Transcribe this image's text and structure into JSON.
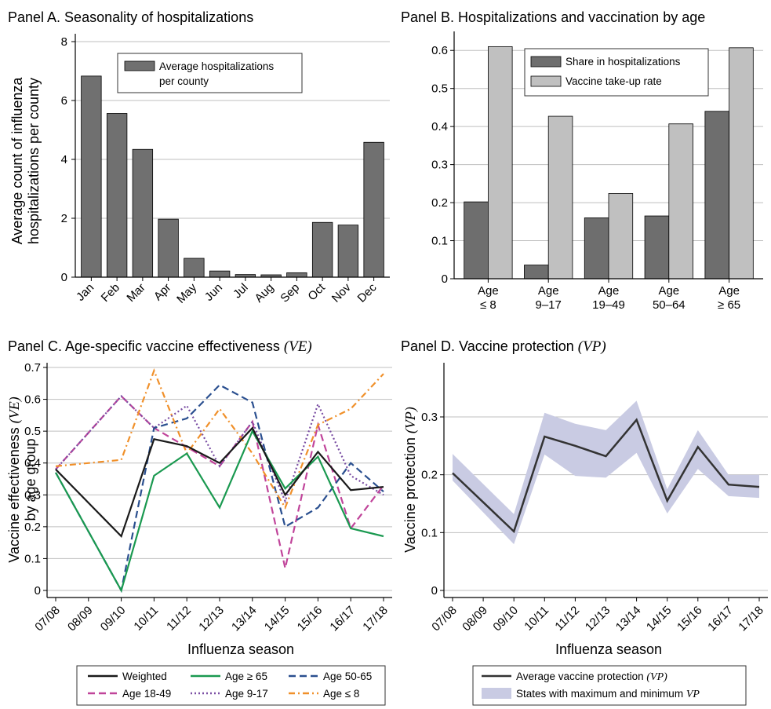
{
  "chart_data": [
    {
      "panel": "A",
      "type": "bar",
      "title": "Panel A. Seasonality of hospitalizations",
      "ylabel": [
        "Average count of influenza",
        "hospitalizations per county"
      ],
      "xlabel": "",
      "ylim": [
        0,
        8
      ],
      "yticks": [
        "0",
        "2",
        "4",
        "6",
        "8"
      ],
      "categories": [
        "Jan",
        "Feb",
        "Mar",
        "Apr",
        "May",
        "Jun",
        "Jul",
        "Aug",
        "Sep",
        "Oct",
        "Nov",
        "Dec"
      ],
      "series": [
        {
          "name": "Average hospitalizations per county",
          "legend_lines": [
            "Average hospitalizations",
            "per county"
          ],
          "color": "#707070",
          "values": [
            6.83,
            5.56,
            4.34,
            1.97,
            0.64,
            0.21,
            0.09,
            0.08,
            0.15,
            1.86,
            1.77,
            4.58
          ]
        }
      ],
      "grid": true,
      "legend": "top-right"
    },
    {
      "panel": "B",
      "type": "bar",
      "title": "Panel B. Hospitalizations and vaccination by age",
      "xlabel": "",
      "ylabel": "",
      "ylim": [
        0,
        0.65
      ],
      "yticks": [
        "0",
        "0.1",
        "0.2",
        "0.3",
        "0.4",
        "0.5",
        "0.6"
      ],
      "categories": [
        {
          "line1": "Age",
          "line2": "≤ 8"
        },
        {
          "line1": "Age",
          "line2": "9–17"
        },
        {
          "line1": "Age",
          "line2": "19–49"
        },
        {
          "line1": "Age",
          "line2": "50–64"
        },
        {
          "line1": "Age",
          "line2": "≥ 65"
        }
      ],
      "series": [
        {
          "name": "Share in hospitalizations",
          "color": "#6e6e6e",
          "values": [
            0.202,
            0.036,
            0.16,
            0.165,
            0.44
          ]
        },
        {
          "name": "Vaccine take-up rate",
          "color": "#c0c0c0",
          "values": [
            0.61,
            0.427,
            0.224,
            0.407,
            0.607
          ]
        }
      ],
      "grid": true,
      "legend": "top-left"
    },
    {
      "panel": "C",
      "type": "line",
      "title": "Panel C. Age-specific vaccine effectiveness ",
      "title_var": "(VE)",
      "xlabel": "Influenza season",
      "ylabel_line1": "Vaccine effectiveness ",
      "ylabel_var": "(VE)",
      "ylabel_line2": "by age group",
      "ylim": [
        0,
        0.7
      ],
      "yticks": [
        "0",
        "0.1",
        "0.2",
        "0.3",
        "0.4",
        "0.5",
        "0.6",
        "0.7"
      ],
      "x": [
        "07/08",
        "08/09",
        "09/10",
        "10/11",
        "11/12",
        "12/13",
        "13/14",
        "14/15",
        "15/16",
        "16/17",
        "17/18"
      ],
      "series": [
        {
          "name": "Weighted",
          "color": "#1a1a1a",
          "dash": "",
          "values": [
            0.38,
            null,
            0.17,
            0.475,
            0.453,
            0.4,
            0.51,
            0.3,
            0.435,
            0.315,
            0.325
          ]
        },
        {
          "name": "Age ≥ 65",
          "color": "#1a9950",
          "dash": "",
          "values": [
            0.37,
            null,
            0.0,
            0.36,
            0.43,
            0.26,
            0.5,
            0.32,
            0.42,
            0.195,
            0.17
          ]
        },
        {
          "name": "Age 50-65",
          "color": "#2a4f8f",
          "dash": "9,5",
          "values": [
            0.37,
            null,
            0.0,
            0.51,
            0.54,
            0.645,
            0.59,
            0.2,
            0.26,
            0.4,
            0.31
          ]
        },
        {
          "name": "Age 18-49",
          "color": "#c0449a",
          "dash": "9,5",
          "values": [
            0.38,
            null,
            0.61,
            0.51,
            0.45,
            0.39,
            0.53,
            0.07,
            0.52,
            0.195,
            0.33
          ]
        },
        {
          "name": "Age 9-17",
          "color": "#7a4ea3",
          "dash": "2,3",
          "values": [
            0.38,
            null,
            0.61,
            0.51,
            0.58,
            0.39,
            0.53,
            0.28,
            0.585,
            0.36,
            0.3
          ]
        },
        {
          "name": "Age ≤ 8",
          "color": "#f0902a",
          "dash": "8,4,2,4",
          "values": [
            0.39,
            null,
            0.41,
            0.69,
            0.43,
            0.57,
            0.43,
            0.26,
            0.52,
            0.57,
            0.68
          ]
        }
      ],
      "grid": true,
      "legend": "bottom"
    },
    {
      "panel": "D",
      "type": "area",
      "title": "Panel D. Vaccine protection ",
      "title_var": "(VP)",
      "xlabel": "Influenza season",
      "ylabel": "Vaccine protection ",
      "ylabel_var": "(VP)",
      "ylim": [
        0,
        0.38
      ],
      "yticks": [
        "0",
        "0.1",
        "0.2",
        "0.3"
      ],
      "x": [
        "07/08",
        "08/09",
        "09/10",
        "10/11",
        "11/12",
        "12/13",
        "13/14",
        "14/15",
        "15/16",
        "16/17",
        "17/18"
      ],
      "series": [
        {
          "name": "Average vaccine protection ",
          "name_var": "(VP)",
          "color": "#333333",
          "values": [
            0.203,
            null,
            0.102,
            0.266,
            0.25,
            0.232,
            0.295,
            0.155,
            0.248,
            0.183,
            0.179
          ]
        },
        {
          "name": "States with maximum and minimum ",
          "name_var": "VP",
          "color": "#c9cbe3",
          "upper": [
            0.236,
            null,
            0.132,
            0.307,
            0.288,
            0.277,
            0.328,
            0.175,
            0.277,
            0.2,
            0.2
          ],
          "lower": [
            0.19,
            null,
            0.08,
            0.235,
            0.198,
            0.195,
            0.238,
            0.133,
            0.21,
            0.163,
            0.16
          ]
        }
      ],
      "grid": true,
      "legend": "bottom"
    }
  ]
}
